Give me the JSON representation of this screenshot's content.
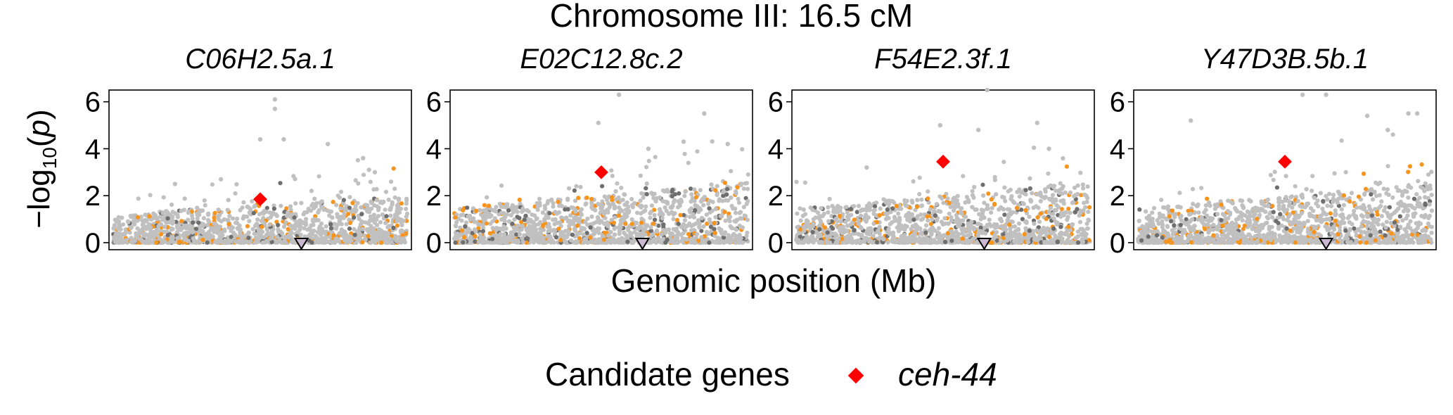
{
  "figure": {
    "title": "Chromosome III: 16.5 cM",
    "xlabel": "Genomic position (Mb)",
    "ylabel_prefix": "−log",
    "ylabel_sub": "10",
    "ylabel_paren_open": "(",
    "ylabel_var": "p",
    "ylabel_paren_close": ")",
    "legend": {
      "title": "Candidate genes",
      "entry": "ceh-44"
    }
  },
  "colors": {
    "background_snp": "#c0c0c0",
    "linked_snp": "#6e6e6e",
    "candidate_snp": "#f7941d",
    "highlight_gene": "#ff0000",
    "marker_triangle_fill": "#c9b8cf",
    "marker_triangle_stroke": "#000000"
  },
  "chart_data": [
    {
      "type": "scatter",
      "title": "C06H2.5a.1",
      "ylim": [
        -0.3,
        6.5
      ],
      "yticks": [
        0,
        2,
        4,
        6
      ],
      "grid": false,
      "highlight": {
        "name": "ceh-44",
        "x": 0.5,
        "y": 1.85
      },
      "marker_x": 0.64,
      "peaks": [
        {
          "x": 0.55,
          "y": 6.1
        },
        {
          "x": 0.55,
          "y": 5.7
        },
        {
          "x": 0.5,
          "y": 4.4
        },
        {
          "x": 0.58,
          "y": 4.4
        },
        {
          "x": 0.73,
          "y": 4.2
        },
        {
          "x": 0.85,
          "y": 3.6
        },
        {
          "x": 0.87,
          "y": 3.1
        },
        {
          "x": 0.89,
          "y": 3.0
        },
        {
          "x": 0.21,
          "y": 2.5
        }
      ]
    },
    {
      "type": "scatter",
      "title": "E02C12.8c.2",
      "ylim": [
        -0.3,
        6.5
      ],
      "yticks": [
        0,
        2,
        4,
        6
      ],
      "grid": false,
      "highlight": {
        "name": "ceh-44",
        "x": 0.5,
        "y": 3.0
      },
      "marker_x": 0.64,
      "peaks": [
        {
          "x": 0.56,
          "y": 6.3
        },
        {
          "x": 0.49,
          "y": 5.1
        },
        {
          "x": 0.85,
          "y": 5.5
        },
        {
          "x": 0.66,
          "y": 4.0
        },
        {
          "x": 0.78,
          "y": 4.3
        },
        {
          "x": 0.93,
          "y": 4.2
        }
      ]
    },
    {
      "type": "scatter",
      "title": "F54E2.3f.1",
      "ylim": [
        -0.3,
        6.5
      ],
      "yticks": [
        0,
        2,
        4,
        6
      ],
      "grid": false,
      "highlight": {
        "name": "ceh-44",
        "x": 0.5,
        "y": 3.45
      },
      "marker_x": 0.64,
      "peaks": [
        {
          "x": 0.65,
          "y": 6.5
        },
        {
          "x": 0.49,
          "y": 5.0
        },
        {
          "x": 0.82,
          "y": 5.1
        },
        {
          "x": 0.62,
          "y": 4.8
        },
        {
          "x": 0.86,
          "y": 4.0
        },
        {
          "x": 0.24,
          "y": 3.2
        }
      ]
    },
    {
      "type": "scatter",
      "title": "Y47D3B.5b.1",
      "ylim": [
        -0.3,
        6.5
      ],
      "yticks": [
        0,
        2,
        4,
        6
      ],
      "grid": false,
      "highlight": {
        "name": "ceh-44",
        "x": 0.5,
        "y": 3.45
      },
      "marker_x": 0.64,
      "peaks": [
        {
          "x": 0.56,
          "y": 6.3
        },
        {
          "x": 0.64,
          "y": 6.3
        },
        {
          "x": 0.18,
          "y": 5.2
        },
        {
          "x": 0.78,
          "y": 5.4
        },
        {
          "x": 0.92,
          "y": 5.5
        },
        {
          "x": 0.95,
          "y": 5.5
        },
        {
          "x": 0.85,
          "y": 4.8
        }
      ]
    }
  ]
}
